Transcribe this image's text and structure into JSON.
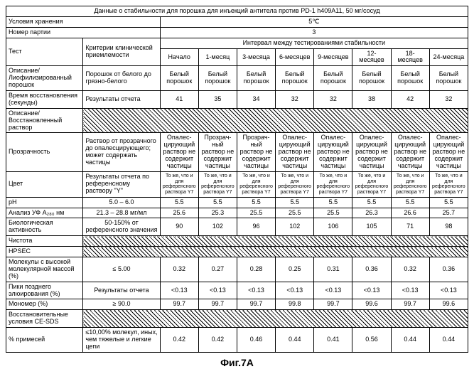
{
  "header": {
    "title": "Данные о стабильности для порошка для инъекций антитела против PD-1 h409A11, 50 мг/сосуд",
    "row1_label": "Условия хранения",
    "row1_value": "5℃",
    "row2_label": "Номер партии",
    "row2_value": "3",
    "interval_label": "Интервал между тестированиями стабильности",
    "test_label": "Тест",
    "criteria_label": "Критерии клинической приемлемости"
  },
  "cols": [
    "Начало",
    "1-месяц",
    "3-месяца",
    "6-месяцев",
    "9-месяцев",
    "12-месяцев",
    "18-месяцев",
    "24-месяца"
  ],
  "rows": {
    "r1_label": "Описание/ Лиофилизированный порошок",
    "r1_crit": "Порошок от белого до грязно-белого",
    "r1_vals": [
      "Белый порошок",
      "Белый порошок",
      "Белый порошок",
      "Белый порошок",
      "Белый порошок",
      "Белый порошок",
      "Белый порошок",
      "Белый порошок"
    ],
    "r2_label": "Время восстановления (секунды)",
    "r2_crit": "Результаты отчета",
    "r2_vals": [
      "41",
      "35",
      "34",
      "32",
      "32",
      "38",
      "42",
      "32"
    ],
    "r3_label": "Описание/ Восстановленный раствор",
    "r4_label": "Прозрачность",
    "r4_crit": "Раствор от прозрачного до опалесцирующего; может содержать частицы",
    "r4_vals": [
      "Опалес-цирующий раствор не содержит частицы",
      "Прозрач-ный раствор не содержит частицы",
      "Прозрач-ный раствор не содержит частицы",
      "Опалес-цирующий раствор не содержит частицы",
      "Опалес-цирующий раствор не содержит частицы",
      "Опалес-цирующий раствор не содержит частицы",
      "Опалес-цирующий раствор не содержит частицы",
      "Опалес-цирующий раствор не содержит частицы"
    ],
    "r5_label": "Цвет",
    "r5_crit": "Результаты отчета по референсному раствору \"Y\"",
    "r5_vals": [
      "То же, что и для референсного раствора Y7",
      "То же, что и для референсного раствора Y7",
      "То же, что и для референсного раствора Y7",
      "То же, что и для референсного раствора Y7",
      "То же, что и для референсного раствора Y7",
      "То же, что и для референсного раствора Y7",
      "То же, что и для референсного раствора Y7",
      "То же, что и для референсного раствора Y7"
    ],
    "r6_label": "pH",
    "r6_crit": "5.0 – 6.0",
    "r6_vals": [
      "5.5",
      "5.5",
      "5.5",
      "5.5",
      "5.5",
      "5.5",
      "5.5",
      "5.5"
    ],
    "r7_label": "Анализ УФ A₂₈₀ нм",
    "r7_crit": "21.3 – 28.8 мг/мл",
    "r7_vals": [
      "25.6",
      "25.3",
      "25.5",
      "25.5",
      "25.5",
      "26.3",
      "26.6",
      "25.7"
    ],
    "r8_label": "Биологическая активность",
    "r8_crit": "50-150% от референсного значения",
    "r8_vals": [
      "90",
      "102",
      "96",
      "102",
      "106",
      "105",
      "71",
      "98"
    ],
    "r9_label": "Чистота",
    "r10_label": "HPSEC",
    "r11_label": "Молекулы с высокой молекулярной массой (%)",
    "r11_crit": "≤ 5.00",
    "r11_vals": [
      "0.32",
      "0.27",
      "0.28",
      "0.25",
      "0.31",
      "0.36",
      "0.32",
      "0.36"
    ],
    "r12_label": "Пики позднего элюирования (%)",
    "r12_crit": "Результаты отчета",
    "r12_vals": [
      "<0.13",
      "<0.13",
      "<0.13",
      "<0.13",
      "<0.13",
      "<0.13",
      "<0.13",
      "<0.13"
    ],
    "r13_label": "Мономер (%)",
    "r13_crit": "≥ 90.0",
    "r13_vals": [
      "99.7",
      "99.7",
      "99.7",
      "99.8",
      "99.7",
      "99.6",
      "99.7",
      "99.6"
    ],
    "r14_label": "Восстановительные условия CE-SDS",
    "r15_label": "% примесей",
    "r15_crit": "≤10,00% молекул, иных, чем тяжелые и легкие цепи",
    "r15_vals": [
      "0.42",
      "0.42",
      "0.46",
      "0.44",
      "0.41",
      "0.56",
      "0.44",
      "0.44"
    ]
  },
  "caption": "Фиг.7A"
}
